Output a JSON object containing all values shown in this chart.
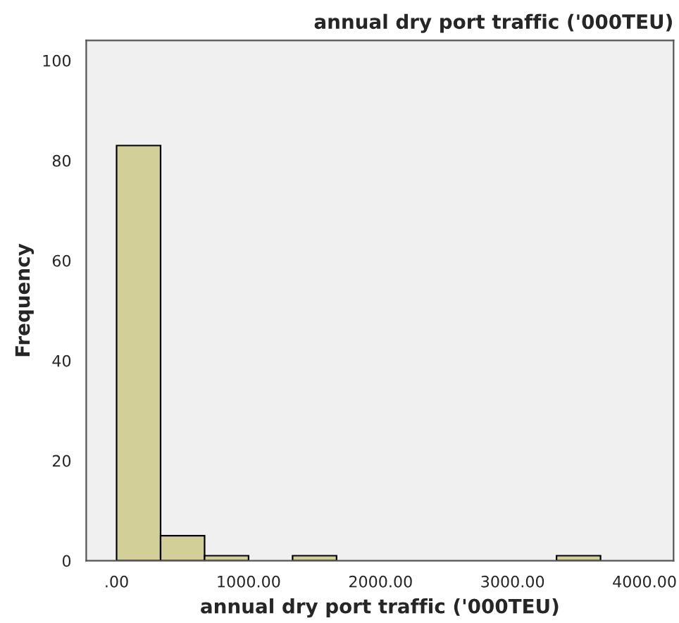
{
  "chart_data": {
    "type": "histogram",
    "title": "annual dry port traffic ('000TEU)",
    "xlabel": "annual dry port traffic ('000TEU)",
    "ylabel": "Frequency",
    "bins": [
      0,
      333.33,
      666.67,
      1000,
      1333.33,
      1666.67,
      2000,
      2333.33,
      2666.67,
      3000,
      3333.33,
      3666.67,
      4000
    ],
    "values": [
      83,
      5,
      1,
      0,
      1,
      0,
      0,
      0,
      0,
      0,
      1,
      0
    ],
    "color": "#d3cf98",
    "xlim": [
      -230,
      4220
    ],
    "ylim": [
      0,
      104
    ],
    "xticks": [
      {
        "value": 0,
        "label": ".00"
      },
      {
        "value": 1000,
        "label": "1000.00"
      },
      {
        "value": 2000,
        "label": "2000.00"
      },
      {
        "value": 3000,
        "label": "3000.00"
      },
      {
        "value": 4000,
        "label": "4000.00"
      }
    ],
    "yticks": [
      0,
      20,
      40,
      60,
      80,
      100
    ],
    "grid": false
  }
}
